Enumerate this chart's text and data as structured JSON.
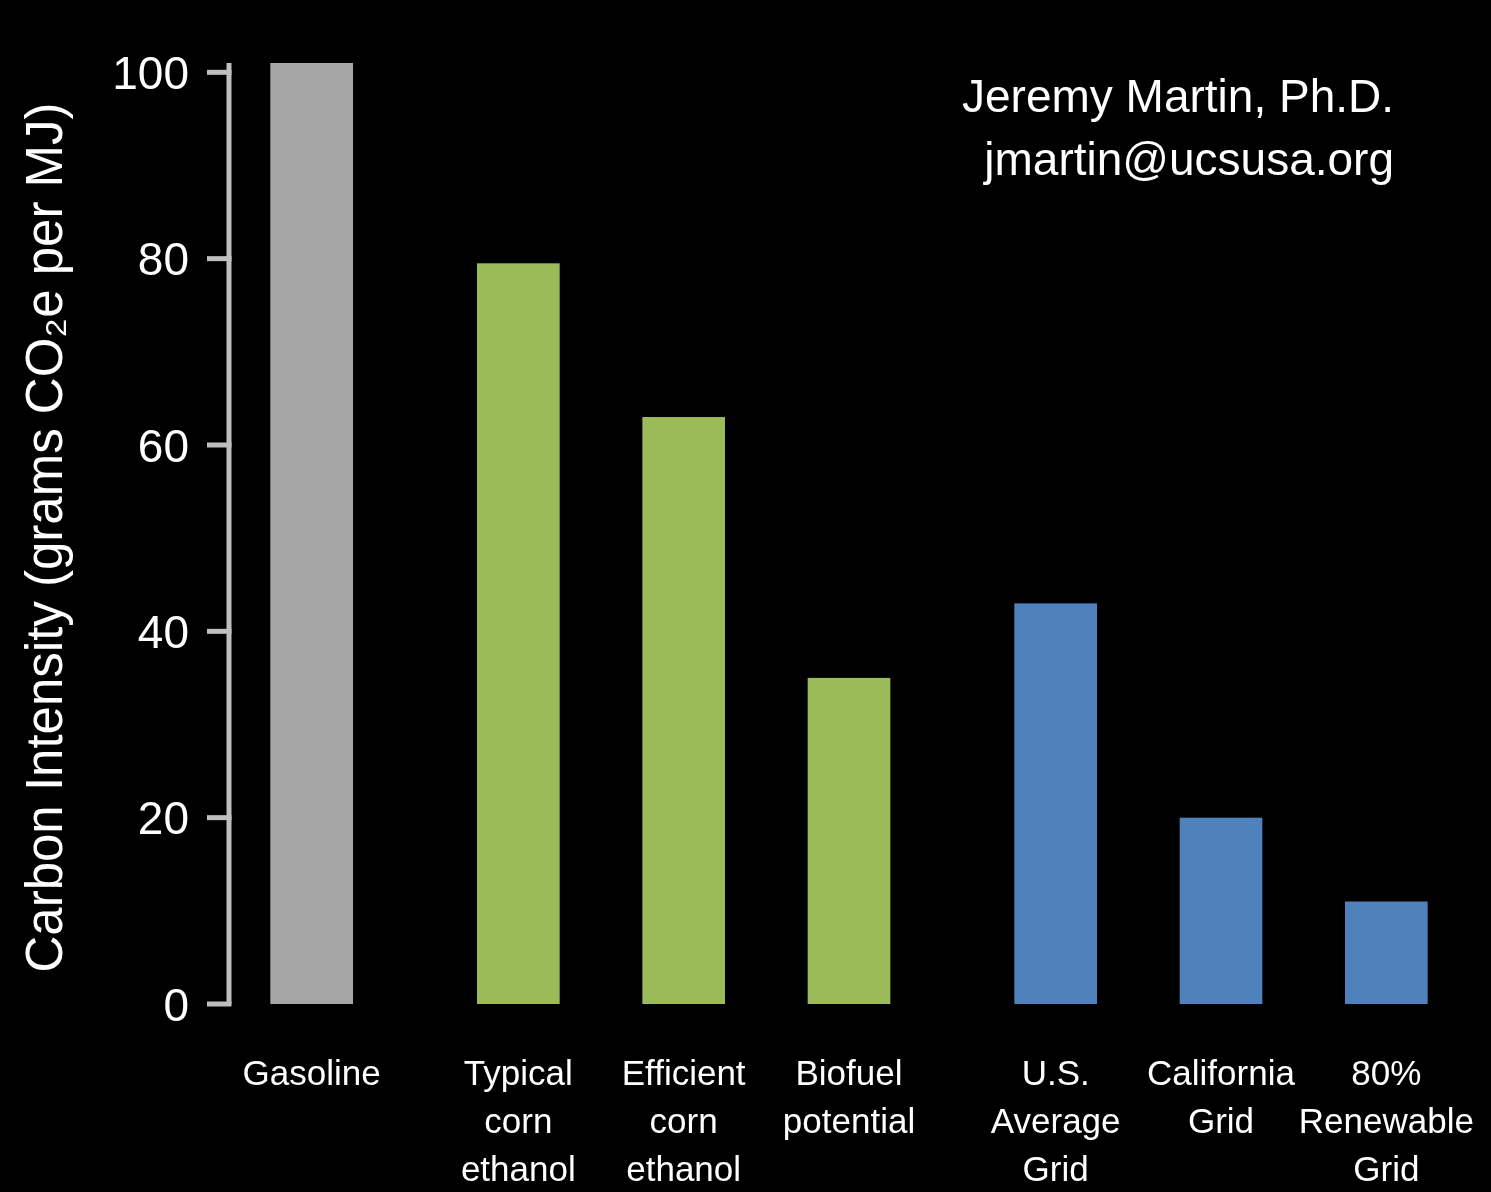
{
  "chart_data": {
    "type": "bar",
    "categories": [
      "Gasoline",
      "Typical corn ethanol",
      "Efficient corn ethanol",
      "Biofuel potential",
      "U.S. Average Grid",
      "California Grid",
      "80% Renewable Grid"
    ],
    "values": [
      101,
      79.5,
      63,
      35,
      43,
      20,
      11
    ],
    "colors": [
      "#a6a6a6",
      "#9bbb59",
      "#9bbb59",
      "#9bbb59",
      "#4f81bd",
      "#4f81bd",
      "#4f81bd"
    ],
    "ylabel": "Carbon Intensity (grams CO₂e per MJ)",
    "ylim": [
      0,
      101
    ],
    "yticks": [
      0,
      20,
      40,
      60,
      80,
      100
    ],
    "annotations": [
      "Jeremy Martin, Ph.D.",
      "jmartin@ucsusa.org"
    ]
  }
}
